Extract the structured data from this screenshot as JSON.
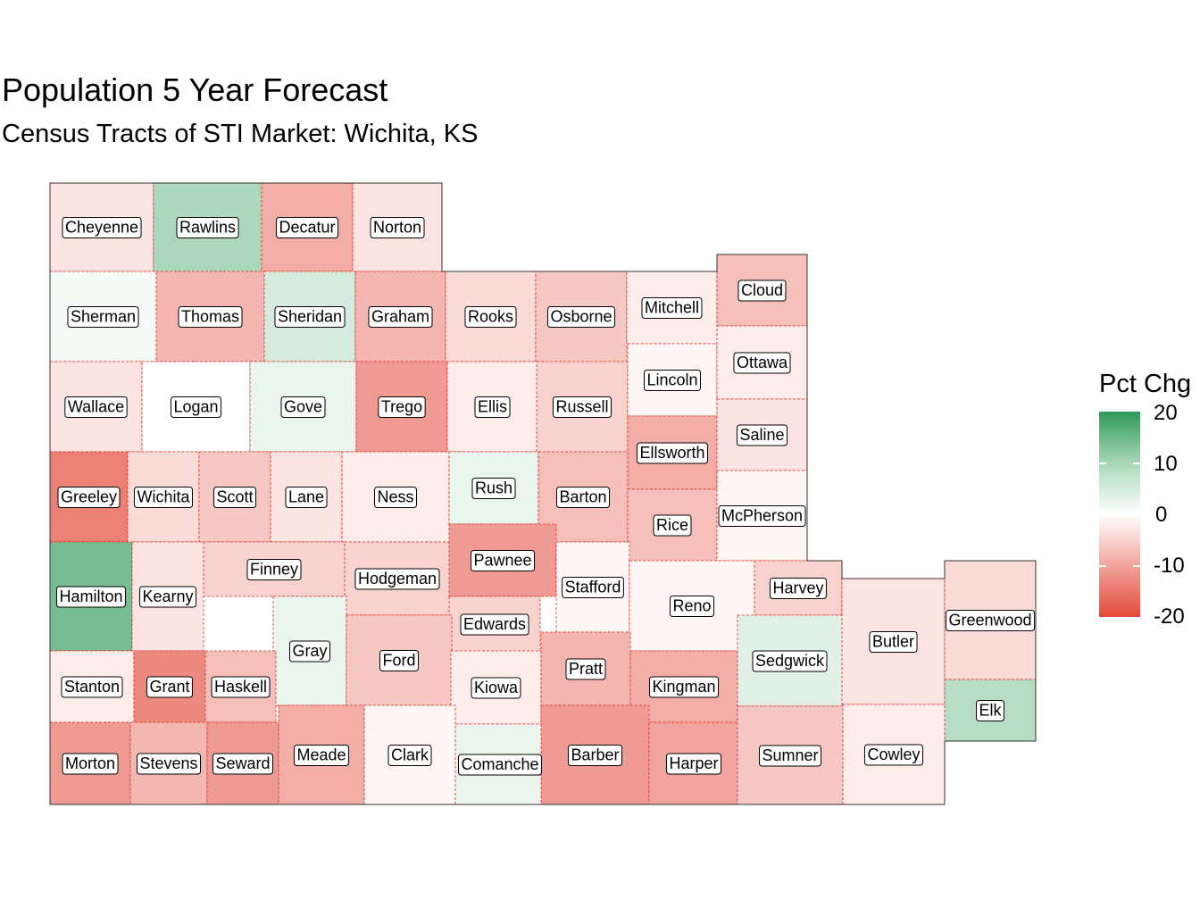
{
  "chart_data": {
    "type": "choropleth",
    "title": "Population 5 Year Forecast",
    "subtitle": "Census Tracts of STI Market: Wichita, KS",
    "legend": {
      "title": "Pct Chg",
      "position": "right",
      "ticks": [
        "20",
        "10",
        "0",
        "-10",
        "-20"
      ],
      "range": [
        -20,
        20
      ],
      "colors": {
        "high": "#2f9a57",
        "mid": "#ffffff",
        "low": "#e2493a"
      }
    },
    "counties": [
      {
        "name": "Cheyenne",
        "value": -3
      },
      {
        "name": "Rawlins",
        "value": 8
      },
      {
        "name": "Decatur",
        "value": -9
      },
      {
        "name": "Norton",
        "value": -3
      },
      {
        "name": "Sherman",
        "value": 1
      },
      {
        "name": "Thomas",
        "value": -8
      },
      {
        "name": "Sheridan",
        "value": 4
      },
      {
        "name": "Graham",
        "value": -8
      },
      {
        "name": "Rooks",
        "value": -4
      },
      {
        "name": "Osborne",
        "value": -6
      },
      {
        "name": "Mitchell",
        "value": -2
      },
      {
        "name": "Cloud",
        "value": -7
      },
      {
        "name": "Wallace",
        "value": -3
      },
      {
        "name": "Logan",
        "value": 0
      },
      {
        "name": "Gove",
        "value": 2
      },
      {
        "name": "Trego",
        "value": -11
      },
      {
        "name": "Ellis",
        "value": -2
      },
      {
        "name": "Russell",
        "value": -5
      },
      {
        "name": "Lincoln",
        "value": -1
      },
      {
        "name": "Ottawa",
        "value": -2
      },
      {
        "name": "Ellsworth",
        "value": -9
      },
      {
        "name": "Saline",
        "value": -3
      },
      {
        "name": "Greeley",
        "value": -14
      },
      {
        "name": "Wichita",
        "value": -4
      },
      {
        "name": "Scott",
        "value": -6
      },
      {
        "name": "Lane",
        "value": -3
      },
      {
        "name": "Ness",
        "value": -2
      },
      {
        "name": "Rush",
        "value": 2
      },
      {
        "name": "Barton",
        "value": -7
      },
      {
        "name": "Rice",
        "value": -7
      },
      {
        "name": "McPherson",
        "value": -1
      },
      {
        "name": "Hamilton",
        "value": 13
      },
      {
        "name": "Kearny",
        "value": -3
      },
      {
        "name": "Finney",
        "value": -5
      },
      {
        "name": "Hodgeman",
        "value": -5
      },
      {
        "name": "Pawnee",
        "value": -11
      },
      {
        "name": "Stafford",
        "value": -1
      },
      {
        "name": "Reno",
        "value": -1
      },
      {
        "name": "Harvey",
        "value": -5
      },
      {
        "name": "Gray",
        "value": 2
      },
      {
        "name": "Edwards",
        "value": -5
      },
      {
        "name": "Ford",
        "value": -6
      },
      {
        "name": "Butler",
        "value": -3
      },
      {
        "name": "Greenwood",
        "value": -4
      },
      {
        "name": "Stanton",
        "value": -2
      },
      {
        "name": "Grant",
        "value": -13
      },
      {
        "name": "Haskell",
        "value": -7
      },
      {
        "name": "Kiowa",
        "value": -2
      },
      {
        "name": "Pratt",
        "value": -8
      },
      {
        "name": "Kingman",
        "value": -9
      },
      {
        "name": "Sedgwick",
        "value": 3
      },
      {
        "name": "Elk",
        "value": 7
      },
      {
        "name": "Morton",
        "value": -11
      },
      {
        "name": "Stevens",
        "value": -8
      },
      {
        "name": "Seward",
        "value": -11
      },
      {
        "name": "Meade",
        "value": -9
      },
      {
        "name": "Clark",
        "value": -1
      },
      {
        "name": "Comanche",
        "value": 2
      },
      {
        "name": "Barber",
        "value": -11
      },
      {
        "name": "Harper",
        "value": -10
      },
      {
        "name": "Sumner",
        "value": -6
      },
      {
        "name": "Cowley",
        "value": -2
      }
    ]
  }
}
